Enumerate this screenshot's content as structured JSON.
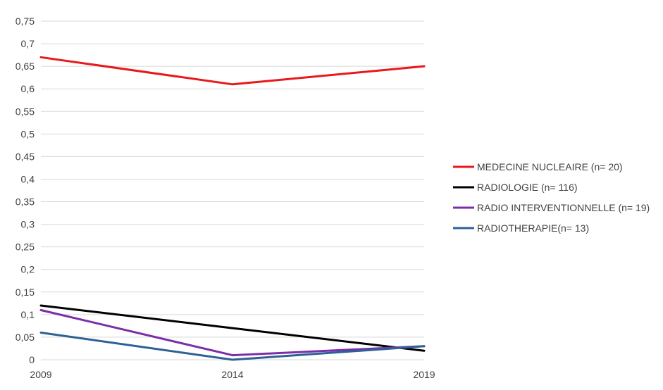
{
  "chart_data": {
    "type": "line",
    "title": "",
    "xlabel": "",
    "ylabel": "",
    "x": [
      "2009",
      "2014",
      "2019"
    ],
    "ylim": [
      0,
      0.75
    ],
    "y_ticks": [
      0,
      0.05,
      0.1,
      0.15,
      0.2,
      0.25,
      0.3,
      0.35,
      0.4,
      0.45,
      0.5,
      0.55,
      0.6,
      0.65,
      0.7,
      0.75
    ],
    "y_tick_labels": [
      "0",
      "0,05",
      "0,1",
      "0,15",
      "0,2",
      "0,25",
      "0,3",
      "0,35",
      "0,4",
      "0,45",
      "0,5",
      "0,55",
      "0,6",
      "0,65",
      "0,7",
      "0,75"
    ],
    "grid": true,
    "legend_position": "right",
    "series": [
      {
        "name": "MEDECINE NUCLEAIRE (n= 20)",
        "color": "#e8191b",
        "values": [
          0.67,
          0.61,
          0.65
        ]
      },
      {
        "name": "RADIOLOGIE (n= 116)",
        "color": "#000000",
        "values": [
          0.12,
          0.07,
          0.02
        ]
      },
      {
        "name": "RADIO INTERVENTIONNELLE (n= 19)",
        "color": "#7b2ea8",
        "values": [
          0.11,
          0.01,
          0.03
        ]
      },
      {
        "name": "RADIOTHERAPIE(n= 13)",
        "color": "#2e6096",
        "values": [
          0.06,
          0.0,
          0.03
        ]
      }
    ]
  }
}
